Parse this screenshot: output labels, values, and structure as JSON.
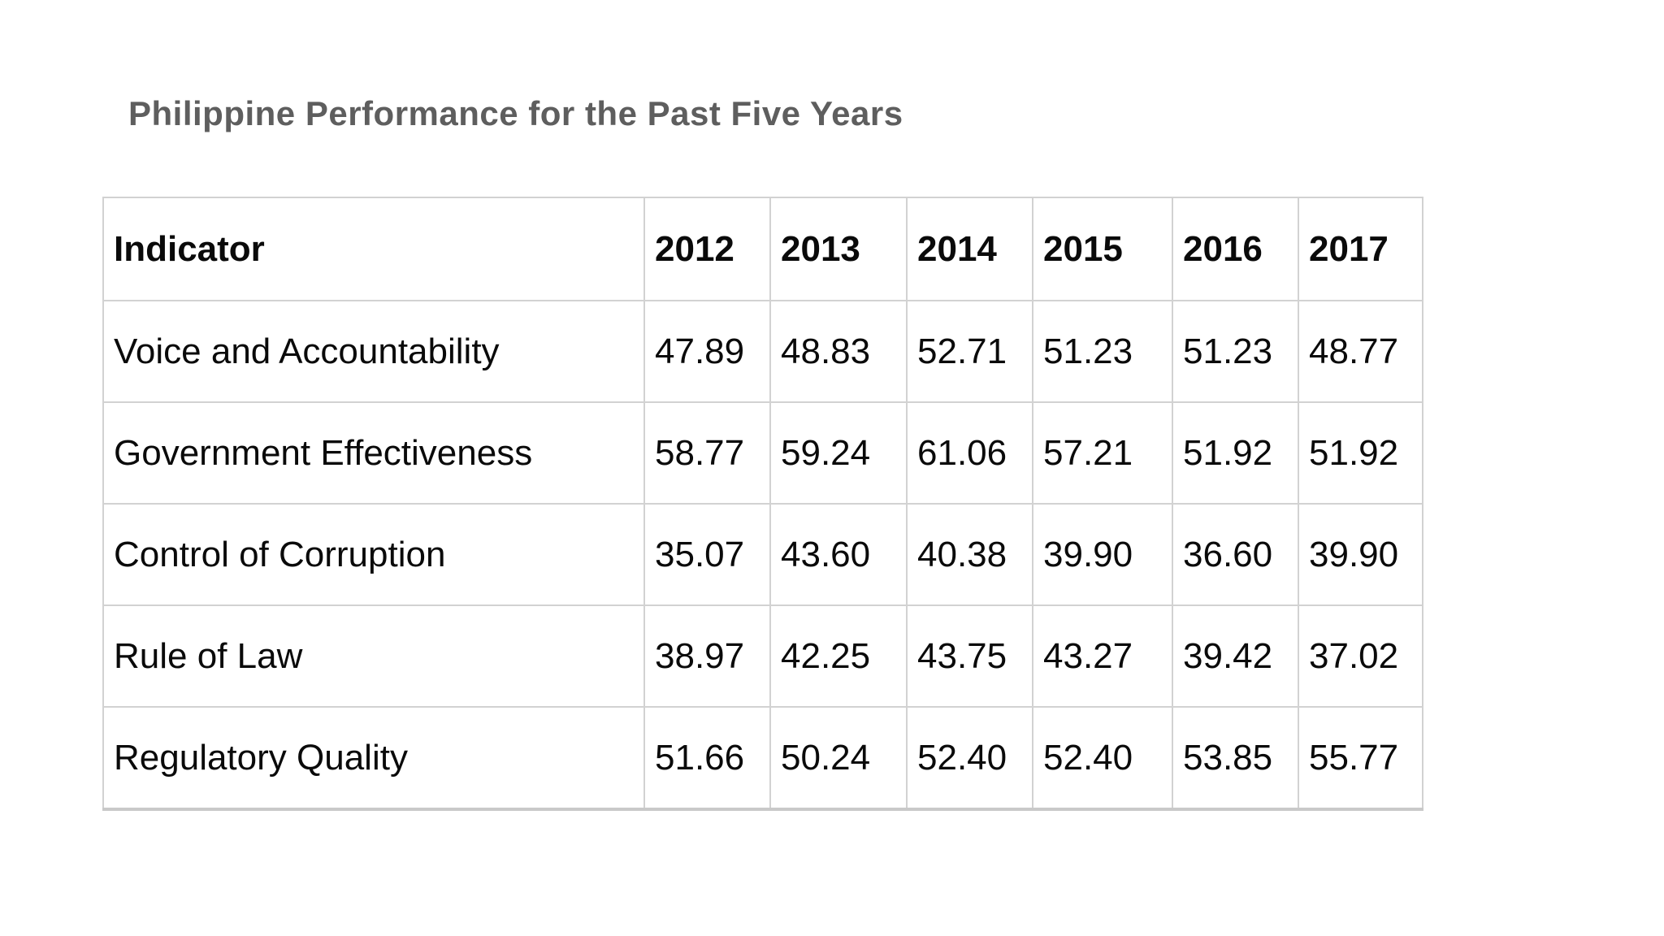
{
  "page": {
    "background": "#ffffff",
    "title_color": "#5e5e5e",
    "grid_color": "#d2d2d2"
  },
  "title": {
    "text": "Philippine Performance for the Past Five Years"
  },
  "table": {
    "columns": [
      "Indicator",
      "2012",
      "2013",
      "2014",
      "2015",
      "2016",
      "2017"
    ],
    "rows": [
      {
        "label": "Voice and Accountability",
        "values": [
          "47.89",
          "48.83",
          "52.71",
          "51.23",
          "51.23",
          "48.77"
        ]
      },
      {
        "label": "Government Effectiveness",
        "values": [
          "58.77",
          "59.24",
          "61.06",
          "57.21",
          "51.92",
          "51.92"
        ]
      },
      {
        "label": "Control of Corruption",
        "values": [
          "35.07",
          "43.60",
          "40.38",
          "39.90",
          "36.60",
          "39.90"
        ]
      },
      {
        "label": "Rule of Law",
        "values": [
          "38.97",
          "42.25",
          "43.75",
          "43.27",
          "39.42",
          "37.02"
        ]
      },
      {
        "label": "Regulatory Quality",
        "values": [
          "51.66",
          "50.24",
          "52.40",
          "52.40",
          "53.85",
          "55.77"
        ]
      }
    ]
  }
}
